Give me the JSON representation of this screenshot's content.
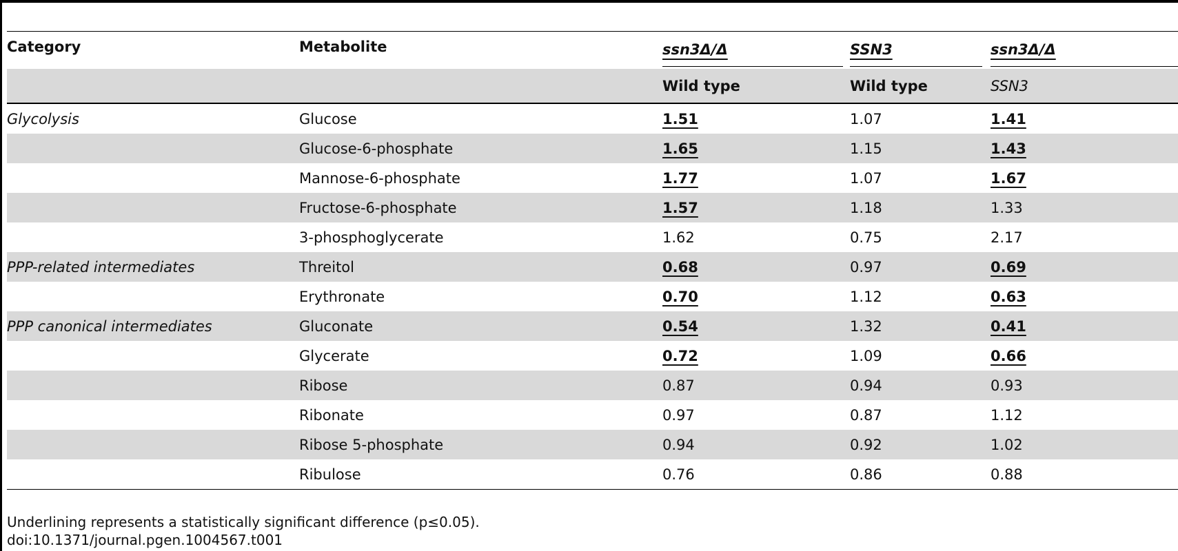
{
  "headers": {
    "category": "Category",
    "metabolite": "Metabolite",
    "comparisons": [
      {
        "numerator": "ssn3Δ/Δ",
        "denominator": "Wild type",
        "denominator_italic": false
      },
      {
        "numerator": "SSN3",
        "denominator": "Wild type",
        "denominator_italic": false
      },
      {
        "numerator": "ssn3Δ/Δ",
        "denominator": "SSN3",
        "denominator_italic": true
      }
    ]
  },
  "rows": [
    {
      "category": "Glycolysis",
      "metabolite": "Glucose",
      "v1": "1.51",
      "v2": "1.07",
      "v3": "1.41",
      "sig1": true,
      "sig2": false,
      "sig3": true
    },
    {
      "category": "",
      "metabolite": "Glucose-6-phosphate",
      "v1": "1.65",
      "v2": "1.15",
      "v3": "1.43",
      "sig1": true,
      "sig2": false,
      "sig3": true
    },
    {
      "category": "",
      "metabolite": "Mannose-6-phosphate",
      "v1": "1.77",
      "v2": "1.07",
      "v3": "1.67",
      "sig1": true,
      "sig2": false,
      "sig3": true
    },
    {
      "category": "",
      "metabolite": "Fructose-6-phosphate",
      "v1": "1.57",
      "v2": "1.18",
      "v3": "1.33",
      "sig1": true,
      "sig2": false,
      "sig3": false
    },
    {
      "category": "",
      "metabolite": "3-phosphoglycerate",
      "v1": "1.62",
      "v2": "0.75",
      "v3": "2.17",
      "sig1": false,
      "sig2": false,
      "sig3": false
    },
    {
      "category": "PPP-related intermediates",
      "metabolite": "Threitol",
      "v1": "0.68",
      "v2": "0.97",
      "v3": "0.69",
      "sig1": true,
      "sig2": false,
      "sig3": true
    },
    {
      "category": "",
      "metabolite": "Erythronate",
      "v1": "0.70",
      "v2": "1.12",
      "v3": "0.63",
      "sig1": true,
      "sig2": false,
      "sig3": true
    },
    {
      "category": "PPP canonical intermediates",
      "metabolite": "Gluconate",
      "v1": "0.54",
      "v2": "1.32",
      "v3": "0.41",
      "sig1": true,
      "sig2": false,
      "sig3": true
    },
    {
      "category": "",
      "metabolite": "Glycerate",
      "v1": "0.72",
      "v2": "1.09",
      "v3": "0.66",
      "sig1": true,
      "sig2": false,
      "sig3": true
    },
    {
      "category": "",
      "metabolite": "Ribose",
      "v1": "0.87",
      "v2": "0.94",
      "v3": "0.93",
      "sig1": false,
      "sig2": false,
      "sig3": false
    },
    {
      "category": "",
      "metabolite": "Ribonate",
      "v1": "0.97",
      "v2": "0.87",
      "v3": "1.12",
      "sig1": false,
      "sig2": false,
      "sig3": false
    },
    {
      "category": "",
      "metabolite": "Ribose 5-phosphate",
      "v1": "0.94",
      "v2": "0.92",
      "v3": "1.02",
      "sig1": false,
      "sig2": false,
      "sig3": false
    },
    {
      "category": "",
      "metabolite": "Ribulose",
      "v1": "0.76",
      "v2": "0.86",
      "v3": "0.88",
      "sig1": false,
      "sig2": false,
      "sig3": false
    }
  ],
  "footnote": "Underlining represents a statistically significant difference (p≤0.05).",
  "doi": "doi:10.1371/journal.pgen.1004567.t001"
}
